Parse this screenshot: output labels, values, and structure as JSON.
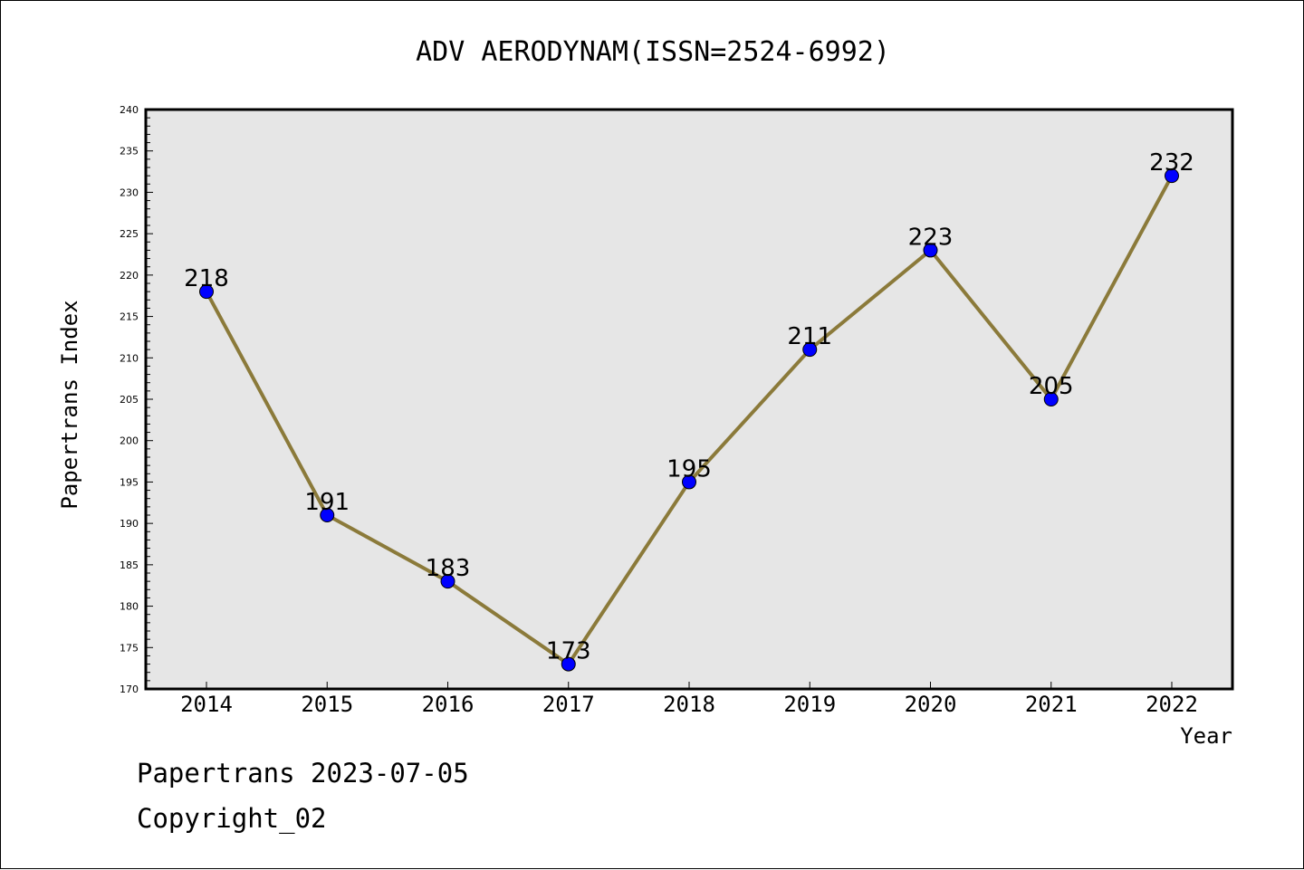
{
  "chart_data": {
    "type": "line",
    "title": "ADV AERODYNAM(ISSN=2524-6992)",
    "xlabel": "Year",
    "ylabel": "Papertrans Index",
    "categories": [
      "2014",
      "2015",
      "2016",
      "2017",
      "2018",
      "2019",
      "2020",
      "2021",
      "2022"
    ],
    "series": [
      {
        "values": [
          218,
          191,
          183,
          173,
          195,
          211,
          223,
          205,
          232
        ],
        "line_color": "#8b7a3a",
        "marker_color": "#0000ff"
      }
    ],
    "data_labels": [
      "218",
      "191",
      "183",
      "173",
      "195",
      "211",
      "223",
      "205",
      "232"
    ],
    "ylim": [
      170,
      240
    ],
    "yticks": [
      "170",
      "175",
      "180",
      "185",
      "190",
      "195",
      "200",
      "205",
      "210",
      "215",
      "220",
      "225",
      "230",
      "235",
      "240"
    ],
    "plot_background": "#e6e6e6",
    "grid": false,
    "legend": "none"
  },
  "footer": {
    "line1": "Papertrans 2023-07-05",
    "line2": "Copyright_02"
  }
}
